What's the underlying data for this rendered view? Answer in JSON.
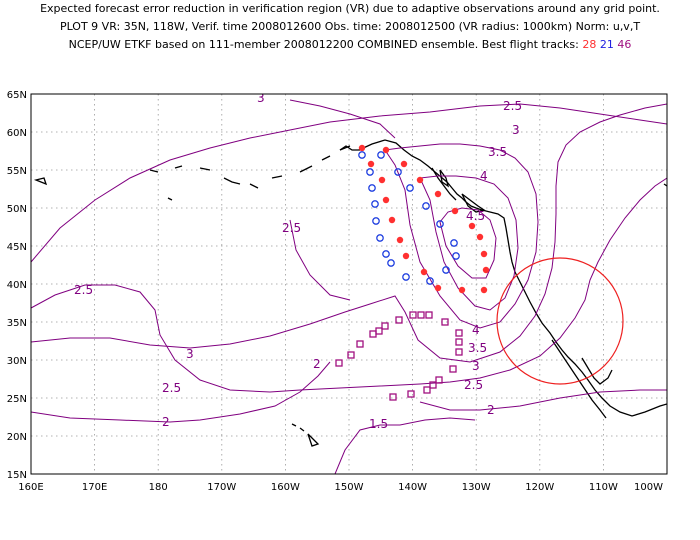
{
  "title": {
    "line1": "Expected forecast error reduction in verification region (VR) due to adaptive observations around any grid point.",
    "line2": "PLOT 9 VR: 35N, 118W, Verif. time 2008012600 Obs. time: 2008012500 (VR radius: 1000km) Norm: u,v,T",
    "line3_prefix": "NCEP/UW ETKF based on 111-member 2008012200 COMBINED ensemble.  Best flight tracks:",
    "flight1": "28",
    "flight2": "21",
    "flight3": "46"
  },
  "axes": {
    "lat_ticks": [
      "65N",
      "60N",
      "55N",
      "50N",
      "45N",
      "40N",
      "35N",
      "30N",
      "25N",
      "20N",
      "15N"
    ],
    "lon_ticks": [
      "160E",
      "170E",
      "180",
      "170W",
      "160W",
      "150W",
      "140W",
      "130W",
      "120W",
      "110W",
      "100W"
    ]
  },
  "contour_labels": [
    "3",
    "2.5",
    "3",
    "3.5",
    "4",
    "4.5",
    "2.5",
    "2.5",
    "3",
    "2.5",
    "2",
    "4",
    "3.5",
    "3",
    "2.5",
    "2",
    "2",
    "1.5"
  ],
  "colors": {
    "contour": "#800080",
    "vr_circle": "#ee2020",
    "track_red": "#ff3030",
    "track_blue": "#2040e0",
    "track_purple": "#a01080",
    "grid": "#999999"
  },
  "verification_region": {
    "lat": 35,
    "lon": -118,
    "radius_km": 1000
  }
}
